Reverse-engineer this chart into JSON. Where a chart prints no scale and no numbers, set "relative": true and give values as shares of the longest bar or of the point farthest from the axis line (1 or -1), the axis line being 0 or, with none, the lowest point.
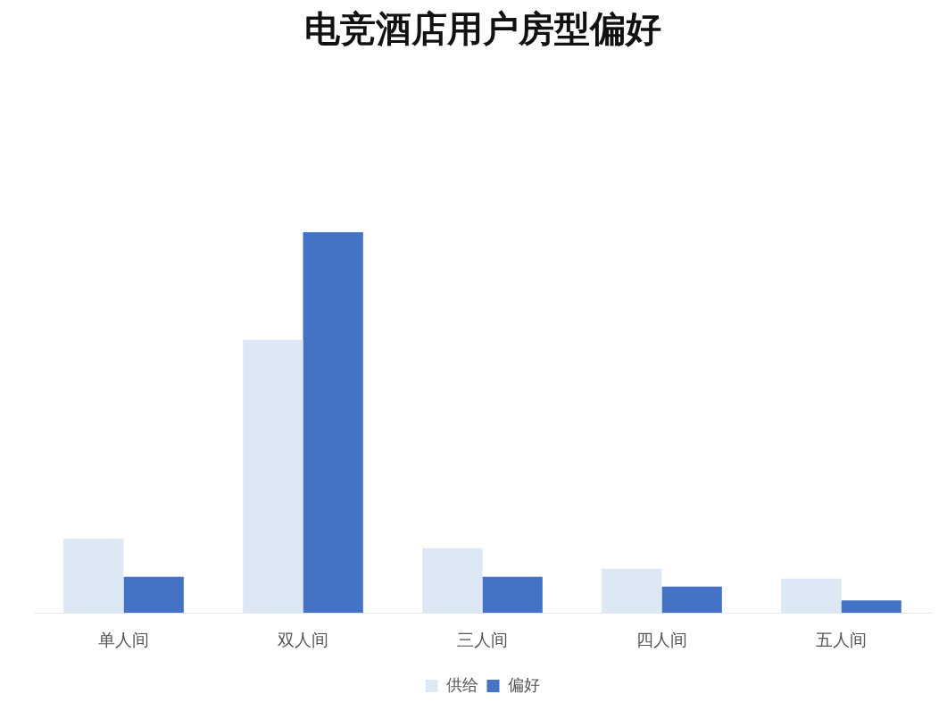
{
  "chart_data": {
    "type": "bar",
    "title": "电竞酒店用户房型偏好",
    "categories": [
      "单人间",
      "双人间",
      "三人间",
      "四人间",
      "五人间"
    ],
    "relative": true,
    "legend": "bottom",
    "grid": false,
    "series": [
      {
        "name": "供给",
        "color": "#dde8f5",
        "values": [
          0.195,
          0.717,
          0.17,
          0.116,
          0.09
        ]
      },
      {
        "name": "偏好",
        "color": "#4472c4",
        "values": [
          0.095,
          1,
          0.095,
          0.069,
          0.033
        ]
      }
    ]
  }
}
